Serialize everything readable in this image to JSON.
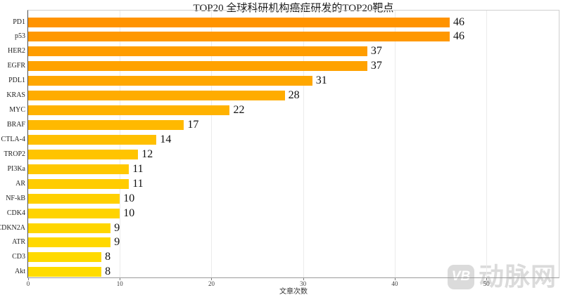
{
  "chart_data": {
    "type": "bar",
    "orientation": "horizontal",
    "title": "TOP20 全球科研机构癌症研发的TOP20靶点",
    "xlabel": "文章次数",
    "categories": [
      "PD1",
      "p53",
      "HER2",
      "EGFR",
      "PDL1",
      "KRAS",
      "MYC",
      "BRAF",
      "CTLA-4",
      "TROP2",
      "PI3Ka",
      "AR",
      "NF-kB",
      "CDK4",
      "CDKN2A",
      "ATR",
      "CD3",
      "Akt"
    ],
    "values": [
      46,
      46,
      37,
      37,
      31,
      28,
      22,
      17,
      14,
      12,
      11,
      11,
      10,
      10,
      9,
      9,
      8,
      8
    ],
    "bar_colors": [
      "#FF9300",
      "#FF9800",
      "#FF9D00",
      "#FFA200",
      "#FFA700",
      "#FFAC00",
      "#FFB200",
      "#FFB900",
      "#FFBF00",
      "#FFC400",
      "#FFC800",
      "#FFCC00",
      "#FFD000",
      "#FFD300",
      "#FFD600",
      "#FFD800",
      "#FFDA00",
      "#FFDC00"
    ],
    "xlim": [
      0,
      57.9
    ],
    "xticks": [
      0,
      10,
      20,
      30,
      40,
      50
    ],
    "grid": "vertical",
    "legend": "none"
  },
  "watermark": {
    "logo_text": "VB",
    "text": "动脉网",
    "color": "#dbdbdb"
  }
}
